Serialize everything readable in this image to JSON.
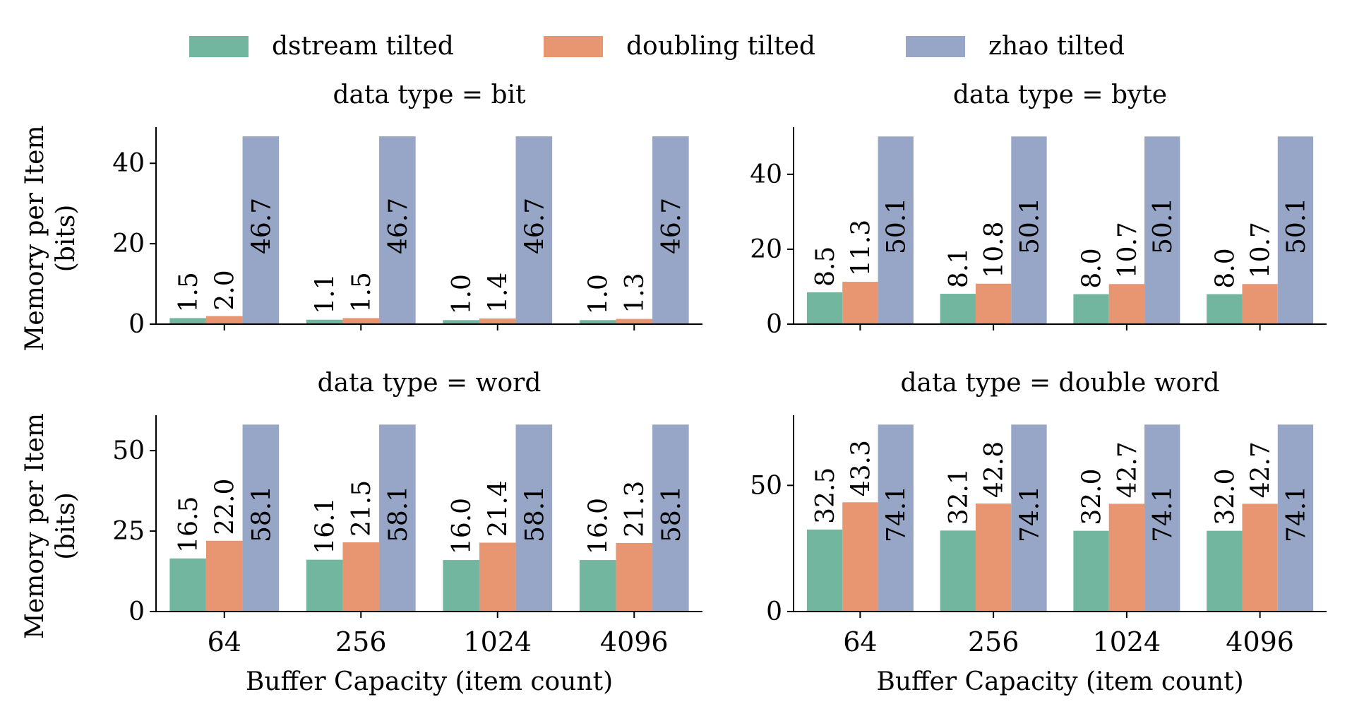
{
  "chart_data": {
    "type": "bar",
    "legend": {
      "position": "top-center",
      "entries": [
        {
          "name": "dstream tilted",
          "color": "#72b6a0"
        },
        {
          "name": "doubling tilted",
          "color": "#e89672"
        },
        {
          "name": "zhao tilted",
          "color": "#97a6c6"
        }
      ]
    },
    "categories": [
      "64",
      "256",
      "1024",
      "4096"
    ],
    "xlabel": "Buffer Capacity (item count)",
    "ylabel": "Memory per Item\n(bits)",
    "panels": [
      {
        "title": "data type = bit",
        "ylim": [
          0,
          49
        ],
        "yticks": [
          0,
          20,
          40
        ],
        "series": [
          {
            "name": "dstream tilted",
            "values": [
              1.5,
              1.1,
              1.0,
              1.0
            ],
            "labels": [
              "1.5",
              "1.1",
              "1.0",
              "1.0"
            ]
          },
          {
            "name": "doubling tilted",
            "values": [
              2.0,
              1.5,
              1.4,
              1.3
            ],
            "labels": [
              "2.0",
              "1.5",
              "1.4",
              "1.3"
            ]
          },
          {
            "name": "zhao tilted",
            "values": [
              46.7,
              46.7,
              46.7,
              46.7
            ],
            "labels": [
              "46.7",
              "46.7",
              "46.7",
              "46.7"
            ]
          }
        ]
      },
      {
        "title": "data type = byte",
        "ylim": [
          0,
          52.6
        ],
        "yticks": [
          0,
          20,
          40
        ],
        "series": [
          {
            "name": "dstream tilted",
            "values": [
              8.5,
              8.1,
              8.0,
              8.0
            ],
            "labels": [
              "8.5",
              "8.1",
              "8.0",
              "8.0"
            ]
          },
          {
            "name": "doubling tilted",
            "values": [
              11.3,
              10.8,
              10.7,
              10.7
            ],
            "labels": [
              "11.3",
              "10.8",
              "10.7",
              "10.7"
            ]
          },
          {
            "name": "zhao tilted",
            "values": [
              50.1,
              50.1,
              50.1,
              50.1
            ],
            "labels": [
              "50.1",
              "50.1",
              "50.1",
              "50.1"
            ]
          }
        ]
      },
      {
        "title": "data type = word",
        "ylim": [
          0,
          61
        ],
        "yticks": [
          0,
          25,
          50
        ],
        "series": [
          {
            "name": "dstream tilted",
            "values": [
              16.5,
              16.1,
              16.0,
              16.0
            ],
            "labels": [
              "16.5",
              "16.1",
              "16.0",
              "16.0"
            ]
          },
          {
            "name": "doubling tilted",
            "values": [
              22.0,
              21.5,
              21.4,
              21.3
            ],
            "labels": [
              "22.0",
              "21.5",
              "21.4",
              "21.3"
            ]
          },
          {
            "name": "zhao tilted",
            "values": [
              58.1,
              58.1,
              58.1,
              58.1
            ],
            "labels": [
              "58.1",
              "58.1",
              "58.1",
              "58.1"
            ]
          }
        ]
      },
      {
        "title": "data type = double word",
        "ylim": [
          0,
          77.8
        ],
        "yticks": [
          0,
          50
        ],
        "series": [
          {
            "name": "dstream tilted",
            "values": [
              32.5,
              32.1,
              32.0,
              32.0
            ],
            "labels": [
              "32.5",
              "32.1",
              "32.0",
              "32.0"
            ]
          },
          {
            "name": "doubling tilted",
            "values": [
              43.3,
              42.8,
              42.7,
              42.7
            ],
            "labels": [
              "43.3",
              "42.8",
              "42.7",
              "42.7"
            ]
          },
          {
            "name": "zhao tilted",
            "values": [
              74.1,
              74.1,
              74.1,
              74.1
            ],
            "labels": [
              "74.1",
              "74.1",
              "74.1",
              "74.1"
            ]
          }
        ]
      }
    ]
  }
}
